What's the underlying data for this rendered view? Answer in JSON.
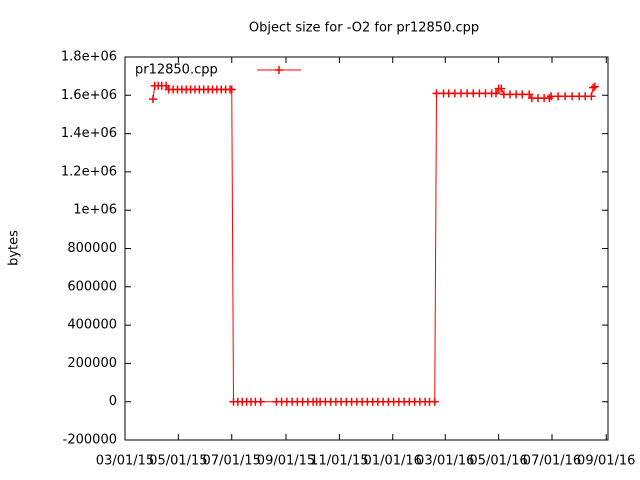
{
  "chart_data": {
    "type": "line",
    "title": "Object size for -O2 for pr12850.cpp",
    "y_label": "bytes",
    "x": [
      "2015-04-02",
      "2015-04-04",
      "2015-04-08",
      "2015-04-12",
      "2015-04-17",
      "2015-04-20",
      "2015-04-25",
      "2015-04-30",
      "2015-05-05",
      "2015-05-10",
      "2015-05-15",
      "2015-05-20",
      "2015-05-25",
      "2015-05-30",
      "2015-06-04",
      "2015-06-09",
      "2015-06-14",
      "2015-06-19",
      "2015-06-24",
      "2015-06-29",
      "2015-07-01",
      "2015-07-03",
      "2015-07-08",
      "2015-07-13",
      "2015-07-18",
      "2015-07-23",
      "2015-07-28",
      "2015-08-03",
      "2015-08-21",
      "2015-08-27",
      "2015-09-02",
      "2015-09-08",
      "2015-09-14",
      "2015-09-20",
      "2015-09-26",
      "2015-10-02",
      "2015-10-06",
      "2015-10-10",
      "2015-10-16",
      "2015-10-22",
      "2015-10-28",
      "2015-11-03",
      "2015-11-09",
      "2015-11-15",
      "2015-11-21",
      "2015-11-27",
      "2015-12-03",
      "2015-12-09",
      "2015-12-15",
      "2015-12-21",
      "2015-12-27",
      "2016-01-02",
      "2016-01-08",
      "2016-01-14",
      "2016-01-20",
      "2016-01-26",
      "2016-02-01",
      "2016-02-07",
      "2016-02-12",
      "2016-02-18",
      "2016-02-20",
      "2016-02-28",
      "2016-03-05",
      "2016-03-12",
      "2016-03-19",
      "2016-03-26",
      "2016-04-02",
      "2016-04-09",
      "2016-04-16",
      "2016-04-23",
      "2016-04-28",
      "2016-05-01",
      "2016-05-04",
      "2016-05-07",
      "2016-05-14",
      "2016-05-21",
      "2016-05-28",
      "2016-06-05",
      "2016-06-08",
      "2016-06-15",
      "2016-06-22",
      "2016-06-28",
      "2016-06-30",
      "2016-07-08",
      "2016-07-16",
      "2016-07-24",
      "2016-08-01",
      "2016-08-08",
      "2016-08-15",
      "2016-08-17",
      "2016-08-19"
    ],
    "series": [
      {
        "name": "pr12850.cpp",
        "color": "#ff0000",
        "values": [
          1580000,
          1650000,
          1650000,
          1650000,
          1650000,
          1630000,
          1630000,
          1630000,
          1630000,
          1630000,
          1630000,
          1630000,
          1630000,
          1630000,
          1630000,
          1630000,
          1630000,
          1630000,
          1630000,
          1630000,
          1630000,
          0,
          0,
          0,
          0,
          0,
          0,
          0,
          0,
          0,
          0,
          0,
          0,
          0,
          0,
          0,
          0,
          0,
          0,
          0,
          0,
          0,
          0,
          0,
          0,
          0,
          0,
          0,
          0,
          0,
          0,
          0,
          0,
          0,
          0,
          0,
          0,
          0,
          0,
          0,
          1610000,
          1610000,
          1610000,
          1610000,
          1610000,
          1610000,
          1610000,
          1610000,
          1610000,
          1610000,
          1610000,
          1635000,
          1635000,
          1605000,
          1605000,
          1605000,
          1605000,
          1605000,
          1585000,
          1585000,
          1585000,
          1585000,
          1595000,
          1595000,
          1595000,
          1595000,
          1595000,
          1595000,
          1595000,
          1640000,
          1645000
        ]
      }
    ],
    "xlim": [
      "2015-03-01",
      "2016-09-03"
    ],
    "xticks": [
      {
        "value": "2015-03-01",
        "label": "03/01/15"
      },
      {
        "value": "2015-05-01",
        "label": "05/01/15"
      },
      {
        "value": "2015-07-01",
        "label": "07/01/15"
      },
      {
        "value": "2015-09-01",
        "label": "09/01/15"
      },
      {
        "value": "2015-11-01",
        "label": "11/01/15"
      },
      {
        "value": "2016-01-01",
        "label": "01/01/16"
      },
      {
        "value": "2016-03-01",
        "label": "03/01/16"
      },
      {
        "value": "2016-05-01",
        "label": "05/01/16"
      },
      {
        "value": "2016-07-01",
        "label": "07/01/16"
      },
      {
        "value": "2016-09-01",
        "label": "09/01/16"
      }
    ],
    "ylim": [
      -200000,
      1800000
    ],
    "yticks": [
      -200000,
      0,
      200000,
      400000,
      600000,
      800000,
      {
        "value": 1000000,
        "label": "1e+06"
      },
      {
        "value": 1200000,
        "label": "1.2e+06"
      },
      {
        "value": 1400000,
        "label": "1.4e+06"
      },
      {
        "value": 1600000,
        "label": "1.6e+06"
      },
      {
        "value": 1800000,
        "label": "1.8e+06"
      }
    ],
    "legend": "top-left"
  }
}
